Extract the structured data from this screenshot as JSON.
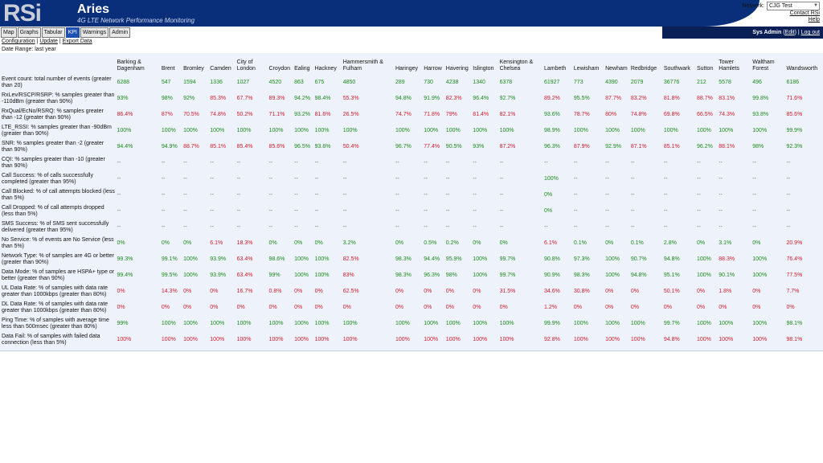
{
  "header": {
    "logo_text": "RSi",
    "title": "Aries",
    "subtitle": "4G LTE Network Performance Monitoring",
    "network_label": "Network:",
    "network_value": "CJG Test",
    "contact_link": "Contact RSi",
    "help_link": "Help"
  },
  "tabs": [
    {
      "label": "Map"
    },
    {
      "label": "Graphs"
    },
    {
      "label": "Tabular"
    },
    {
      "label": "KPI"
    },
    {
      "label": "Warnings"
    },
    {
      "label": "Admin"
    }
  ],
  "active_tab": "KPI",
  "user": {
    "name": "Sys Admin",
    "edit": "Edit",
    "logout": "Log out"
  },
  "subnav": {
    "configuration": "Configuration",
    "update": "Update",
    "export": "Export Data"
  },
  "date_range": "Date Range: last year",
  "columns": [
    "Barking & Dagenham",
    "Brent",
    "Bromley",
    "Camden",
    "City of London",
    "Croydon",
    "Ealing",
    "Hackney",
    "Hammersmith & Fulham",
    "Haringey",
    "Harrow",
    "Havering",
    "Islington",
    "Kensington & Chelsea",
    "Lambeth",
    "Lewisham",
    "Newham",
    "Redbridge",
    "Southwark",
    "Sutton",
    "Tower Hamlets",
    "Waltham Forest",
    "Wandsworth"
  ],
  "rows": [
    {
      "label": "Event count: total number of events (greater than 20)",
      "values": [
        "6288",
        "547",
        "1594",
        "1336",
        "1027",
        "4520",
        "863",
        "675",
        "4850",
        "289",
        "730",
        "4238",
        "1340",
        "6378",
        "61927",
        "773",
        "4390",
        "2079",
        "36776",
        "212",
        "5578",
        "496",
        "6186"
      ],
      "status": [
        "g",
        "g",
        "g",
        "g",
        "g",
        "g",
        "g",
        "g",
        "g",
        "g",
        "g",
        "g",
        "g",
        "g",
        "g",
        "g",
        "g",
        "g",
        "g",
        "g",
        "g",
        "g",
        "g"
      ]
    },
    {
      "label": "RxLev/RSCP/RSRP: % samples greater than -110dBm (greater than 90%)",
      "values": [
        "93%",
        "98%",
        "92%",
        "85.3%",
        "67.7%",
        "89.3%",
        "94.2%",
        "98.4%",
        "55.3%",
        "94.8%",
        "91.9%",
        "82.3%",
        "96.4%",
        "92.7%",
        "89.2%",
        "95.5%",
        "87.7%",
        "83.2%",
        "81.8%",
        "88.7%",
        "83.1%",
        "99.8%",
        "71.6%"
      ],
      "status": [
        "g",
        "g",
        "g",
        "b",
        "b",
        "b",
        "g",
        "g",
        "b",
        "g",
        "g",
        "b",
        "g",
        "g",
        "b",
        "g",
        "b",
        "b",
        "b",
        "b",
        "b",
        "g",
        "b"
      ]
    },
    {
      "label": "RxQual/EcNo/RSRQ: % samples greater than -12 (greater than 90%)",
      "values": [
        "86.4%",
        "87%",
        "70.5%",
        "74.8%",
        "50.2%",
        "71.1%",
        "93.2%",
        "81.6%",
        "26.5%",
        "74.7%",
        "71.8%",
        "79%",
        "81.4%",
        "82.1%",
        "93.6%",
        "78.7%",
        "80%",
        "74.8%",
        "69.8%",
        "66.5%",
        "74.3%",
        "93.8%",
        "85.6%"
      ],
      "status": [
        "b",
        "b",
        "b",
        "b",
        "b",
        "b",
        "g",
        "b",
        "b",
        "b",
        "b",
        "b",
        "b",
        "b",
        "g",
        "b",
        "b",
        "b",
        "b",
        "b",
        "b",
        "g",
        "b"
      ]
    },
    {
      "label": "LTE_RSSI: % samples greater than -90dBm (greater than 90%)",
      "values": [
        "100%",
        "100%",
        "100%",
        "100%",
        "100%",
        "100%",
        "100%",
        "100%",
        "100%",
        "100%",
        "100%",
        "100%",
        "100%",
        "100%",
        "98.9%",
        "100%",
        "100%",
        "100%",
        "100%",
        "100%",
        "100%",
        "100%",
        "99.9%"
      ],
      "status": [
        "g",
        "g",
        "g",
        "g",
        "g",
        "g",
        "g",
        "g",
        "g",
        "g",
        "g",
        "g",
        "g",
        "g",
        "g",
        "g",
        "g",
        "g",
        "g",
        "g",
        "g",
        "g",
        "g"
      ]
    },
    {
      "label": "SNR: % samples greater than -2 (greater than 90%)",
      "values": [
        "94.4%",
        "94.9%",
        "88.7%",
        "85.1%",
        "85.4%",
        "85.6%",
        "96.5%",
        "93.6%",
        "50.4%",
        "96.7%",
        "77.4%",
        "90.5%",
        "93%",
        "87.2%",
        "96.3%",
        "87.9%",
        "92.9%",
        "87.1%",
        "85.1%",
        "96.2%",
        "88.1%",
        "98%",
        "92.3%"
      ],
      "status": [
        "g",
        "g",
        "b",
        "b",
        "b",
        "b",
        "g",
        "g",
        "b",
        "g",
        "b",
        "g",
        "g",
        "b",
        "g",
        "b",
        "g",
        "b",
        "b",
        "g",
        "b",
        "g",
        "g"
      ]
    },
    {
      "label": "CQI: % samples greater than -10 (greater than 90%)",
      "values": [
        "--",
        "--",
        "--",
        "--",
        "--",
        "--",
        "--",
        "--",
        "--",
        "--",
        "--",
        "--",
        "--",
        "--",
        "--",
        "--",
        "--",
        "--",
        "--",
        "--",
        "--",
        "--",
        "--"
      ],
      "status": [
        "n",
        "n",
        "n",
        "n",
        "n",
        "n",
        "n",
        "n",
        "n",
        "n",
        "n",
        "n",
        "n",
        "n",
        "n",
        "n",
        "n",
        "n",
        "n",
        "n",
        "n",
        "n",
        "n"
      ]
    },
    {
      "label": "Call Success: % of calls successfully completed (greater than 95%)",
      "values": [
        "--",
        "--",
        "--",
        "--",
        "--",
        "--",
        "--",
        "--",
        "--",
        "--",
        "--",
        "--",
        "--",
        "--",
        "100%",
        "--",
        "--",
        "--",
        "--",
        "--",
        "--",
        "--",
        "--"
      ],
      "status": [
        "n",
        "n",
        "n",
        "n",
        "n",
        "n",
        "n",
        "n",
        "n",
        "n",
        "n",
        "n",
        "n",
        "n",
        "g",
        "n",
        "n",
        "n",
        "n",
        "n",
        "n",
        "n",
        "n"
      ]
    },
    {
      "label": "Call Blocked: % of call attempts blocked (less than 5%)",
      "values": [
        "--",
        "--",
        "--",
        "--",
        "--",
        "--",
        "--",
        "--",
        "--",
        "--",
        "--",
        "--",
        "--",
        "--",
        "0%",
        "--",
        "--",
        "--",
        "--",
        "--",
        "--",
        "--",
        "--"
      ],
      "status": [
        "n",
        "n",
        "n",
        "n",
        "n",
        "n",
        "n",
        "n",
        "n",
        "n",
        "n",
        "n",
        "n",
        "n",
        "g",
        "n",
        "n",
        "n",
        "n",
        "n",
        "n",
        "n",
        "n"
      ]
    },
    {
      "label": "Call Dropped: % of call attempts dropped (less than 5%)",
      "values": [
        "--",
        "--",
        "--",
        "--",
        "--",
        "--",
        "--",
        "--",
        "--",
        "--",
        "--",
        "--",
        "--",
        "--",
        "0%",
        "--",
        "--",
        "--",
        "--",
        "--",
        "--",
        "--",
        "--"
      ],
      "status": [
        "n",
        "n",
        "n",
        "n",
        "n",
        "n",
        "n",
        "n",
        "n",
        "n",
        "n",
        "n",
        "n",
        "n",
        "g",
        "n",
        "n",
        "n",
        "n",
        "n",
        "n",
        "n",
        "n"
      ]
    },
    {
      "label": "SMS Success: % of SMS sent successfully delivered (greater than 95%)",
      "values": [
        "--",
        "--",
        "--",
        "--",
        "--",
        "--",
        "--",
        "--",
        "--",
        "--",
        "--",
        "--",
        "--",
        "--",
        "--",
        "--",
        "--",
        "--",
        "--",
        "--",
        "--",
        "--",
        "--"
      ],
      "status": [
        "n",
        "n",
        "n",
        "n",
        "n",
        "n",
        "n",
        "n",
        "n",
        "n",
        "n",
        "n",
        "n",
        "n",
        "n",
        "n",
        "n",
        "n",
        "n",
        "n",
        "n",
        "n",
        "n"
      ]
    },
    {
      "label": "No Service: % of events are No Service (less than 5%)",
      "values": [
        "0%",
        "0%",
        "0%",
        "6.1%",
        "18.3%",
        "0%",
        "0%",
        "0%",
        "3.2%",
        "0%",
        "0.5%",
        "0.2%",
        "0%",
        "0%",
        "6.1%",
        "0.1%",
        "0%",
        "0.1%",
        "2.8%",
        "0%",
        "3.1%",
        "0%",
        "20.9%"
      ],
      "status": [
        "g",
        "g",
        "g",
        "b",
        "b",
        "g",
        "g",
        "g",
        "g",
        "g",
        "g",
        "g",
        "g",
        "g",
        "b",
        "g",
        "g",
        "g",
        "g",
        "g",
        "g",
        "g",
        "b"
      ]
    },
    {
      "label": "Network Type: % of samples are 4G or better (greater than 90%)",
      "values": [
        "99.3%",
        "99.1%",
        "100%",
        "93.9%",
        "63.4%",
        "98.6%",
        "100%",
        "100%",
        "82.5%",
        "98.3%",
        "94.4%",
        "95.9%",
        "100%",
        "99.7%",
        "90.8%",
        "97.3%",
        "100%",
        "90.7%",
        "94.8%",
        "100%",
        "88.3%",
        "100%",
        "76.4%"
      ],
      "status": [
        "g",
        "g",
        "g",
        "g",
        "b",
        "g",
        "g",
        "g",
        "b",
        "g",
        "g",
        "g",
        "g",
        "g",
        "g",
        "g",
        "g",
        "g",
        "g",
        "g",
        "b",
        "g",
        "b"
      ]
    },
    {
      "label": "Data Mode: % of samples are HSPA+ type or better (greater than 90%)",
      "values": [
        "99.4%",
        "99.5%",
        "100%",
        "93.9%",
        "63.4%",
        "99%",
        "100%",
        "100%",
        "83%",
        "98.3%",
        "96.3%",
        "98%",
        "100%",
        "99.7%",
        "90.9%",
        "98.3%",
        "100%",
        "94.8%",
        "95.1%",
        "100%",
        "90.1%",
        "100%",
        "77.5%"
      ],
      "status": [
        "g",
        "g",
        "g",
        "g",
        "b",
        "g",
        "g",
        "g",
        "b",
        "g",
        "g",
        "g",
        "g",
        "g",
        "g",
        "g",
        "g",
        "g",
        "g",
        "g",
        "g",
        "g",
        "b"
      ]
    },
    {
      "label": "UL Data Rate: % of samples with data rate greater than 1000kbps (greater than 80%)",
      "values": [
        "0%",
        "14.3%",
        "0%",
        "0%",
        "16.7%",
        "0.8%",
        "0%",
        "0%",
        "62.5%",
        "0%",
        "0%",
        "0%",
        "0%",
        "31.5%",
        "34.6%",
        "30.8%",
        "0%",
        "0%",
        "50.1%",
        "0%",
        "1.8%",
        "0%",
        "7.7%"
      ],
      "status": [
        "b",
        "b",
        "b",
        "b",
        "b",
        "b",
        "b",
        "b",
        "b",
        "b",
        "b",
        "b",
        "b",
        "b",
        "b",
        "b",
        "b",
        "b",
        "b",
        "b",
        "b",
        "b",
        "b"
      ]
    },
    {
      "label": "DL Data Rate: % of samples with data rate greater than 1000kbps (greater than 80%)",
      "values": [
        "0%",
        "0%",
        "0%",
        "0%",
        "0%",
        "0%",
        "0%",
        "0%",
        "0%",
        "0%",
        "0%",
        "0%",
        "0%",
        "0%",
        "1.2%",
        "0%",
        "0%",
        "0%",
        "0%",
        "0%",
        "0%",
        "0%",
        "0%"
      ],
      "status": [
        "b",
        "b",
        "b",
        "b",
        "b",
        "b",
        "b",
        "b",
        "b",
        "b",
        "b",
        "b",
        "b",
        "b",
        "b",
        "b",
        "b",
        "b",
        "b",
        "b",
        "b",
        "b",
        "b"
      ]
    },
    {
      "label": "Ping Time: % of samples with average time less than 500msec (greater than 80%)",
      "values": [
        "99%",
        "100%",
        "100%",
        "100%",
        "100%",
        "100%",
        "100%",
        "100%",
        "100%",
        "100%",
        "100%",
        "100%",
        "100%",
        "100%",
        "99.9%",
        "100%",
        "100%",
        "100%",
        "99.7%",
        "100%",
        "100%",
        "100%",
        "98.1%"
      ],
      "status": [
        "g",
        "g",
        "g",
        "g",
        "g",
        "g",
        "g",
        "g",
        "g",
        "g",
        "g",
        "g",
        "g",
        "g",
        "g",
        "g",
        "g",
        "g",
        "g",
        "g",
        "g",
        "g",
        "g"
      ]
    },
    {
      "label": "Data Fail: % of samples with failed data connection (less than 5%)",
      "values": [
        "100%",
        "100%",
        "100%",
        "100%",
        "100%",
        "100%",
        "100%",
        "100%",
        "100%",
        "100%",
        "100%",
        "100%",
        "100%",
        "100%",
        "92.8%",
        "100%",
        "100%",
        "100%",
        "94.8%",
        "100%",
        "100%",
        "100%",
        "98.1%"
      ],
      "status": [
        "b",
        "b",
        "b",
        "b",
        "b",
        "b",
        "b",
        "b",
        "b",
        "b",
        "b",
        "b",
        "b",
        "b",
        "b",
        "b",
        "b",
        "b",
        "b",
        "b",
        "b",
        "b",
        "b"
      ]
    }
  ]
}
